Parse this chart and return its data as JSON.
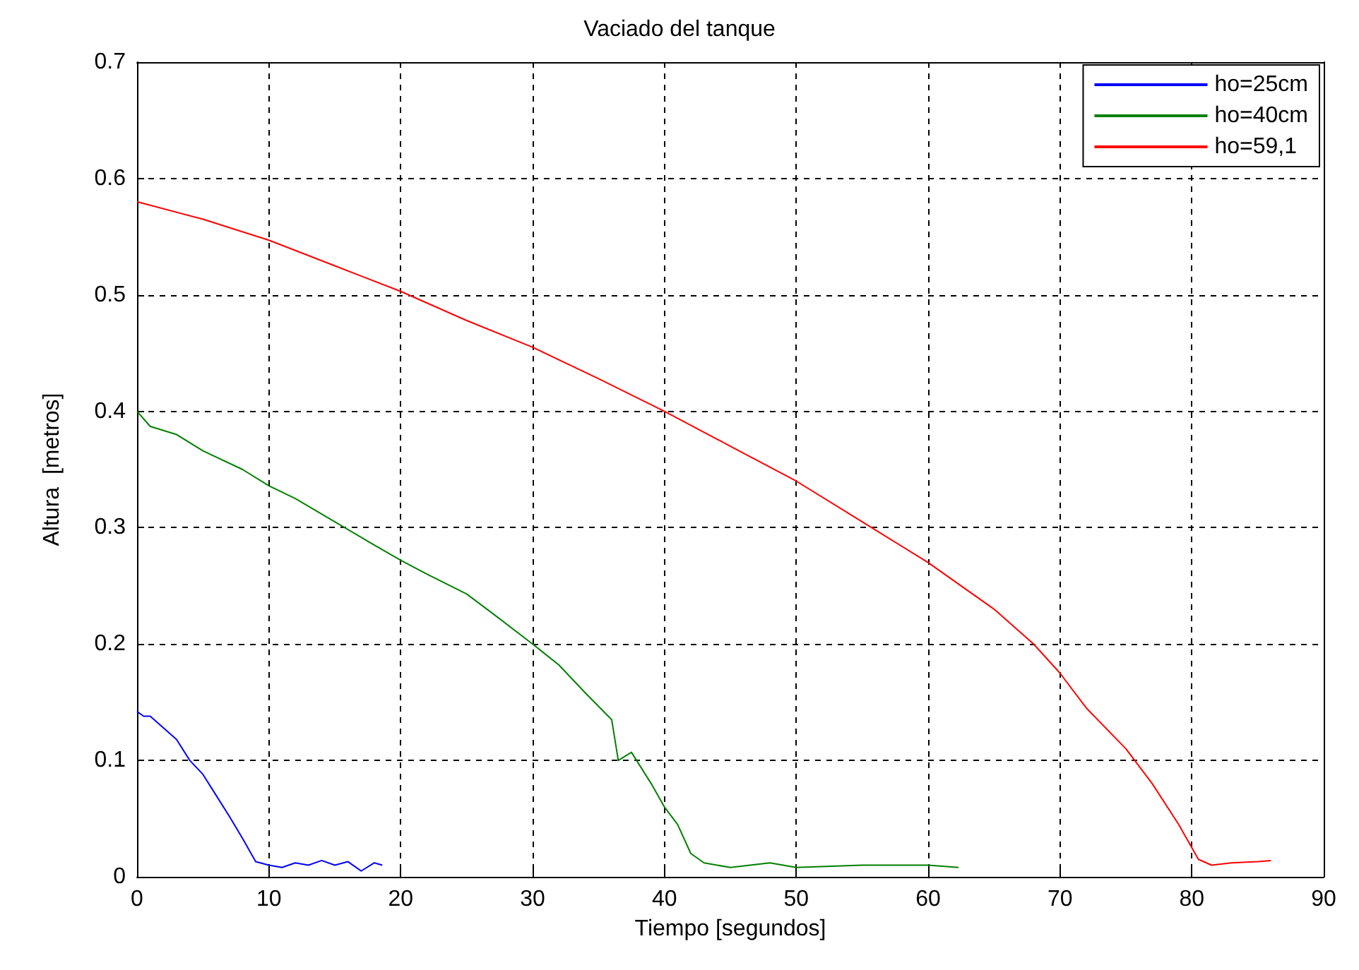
{
  "chart_data": {
    "type": "line",
    "title": "Vaciado del tanque",
    "xlabel": "Tiempo [segundos]",
    "ylabel": "Altura  [metros]",
    "xlim": [
      0,
      90
    ],
    "xticks": [
      0,
      10,
      20,
      30,
      40,
      50,
      60,
      70,
      80,
      90
    ],
    "ylim": [
      0,
      0.7
    ],
    "yticks": [
      0,
      0.1,
      0.2,
      0.3,
      0.4,
      0.5,
      0.6,
      0.7
    ],
    "grid": true,
    "legend": "top right",
    "marker": "none",
    "line_style": "solid",
    "series": [
      {
        "name": "ho=25cm",
        "color": "#0000ff",
        "x": [
          0,
          0.5,
          1,
          2,
          3,
          4,
          5,
          6,
          7,
          8,
          9,
          10,
          11,
          12,
          13,
          14,
          15,
          16,
          17,
          18,
          18.6
        ],
        "values": [
          0.142,
          0.138,
          0.138,
          0.128,
          0.118,
          0.1,
          0.088,
          0.07,
          0.052,
          0.033,
          0.013,
          0.01,
          0.008,
          0.012,
          0.01,
          0.014,
          0.01,
          0.013,
          0.005,
          0.012,
          0.01
        ]
      },
      {
        "name": "ho=40cm",
        "color": "#008000",
        "x": [
          0,
          1,
          3,
          5,
          8,
          10,
          12,
          15,
          18,
          20,
          22,
          25,
          27,
          30,
          32,
          34,
          36,
          36.5,
          37.5,
          39,
          40,
          41,
          42,
          43,
          45,
          48,
          50,
          55,
          60,
          62.3
        ],
        "values": [
          0.4,
          0.387,
          0.38,
          0.366,
          0.35,
          0.336,
          0.325,
          0.305,
          0.285,
          0.272,
          0.26,
          0.243,
          0.226,
          0.2,
          0.182,
          0.158,
          0.135,
          0.1,
          0.107,
          0.08,
          0.06,
          0.045,
          0.02,
          0.012,
          0.008,
          0.012,
          0.008,
          0.01,
          0.01,
          0.008
        ]
      },
      {
        "name": "ho=59,1",
        "color": "#ff0000",
        "x": [
          0,
          5,
          10,
          15,
          20,
          25,
          30,
          35,
          40,
          45,
          50,
          55,
          60,
          65,
          68,
          70,
          72,
          75,
          77,
          79,
          80.5,
          81.5,
          83,
          85,
          86
        ],
        "values": [
          0.58,
          0.565,
          0.547,
          0.525,
          0.503,
          0.478,
          0.455,
          0.428,
          0.4,
          0.37,
          0.34,
          0.305,
          0.27,
          0.23,
          0.2,
          0.175,
          0.145,
          0.11,
          0.08,
          0.045,
          0.015,
          0.01,
          0.012,
          0.013,
          0.014
        ]
      }
    ]
  }
}
